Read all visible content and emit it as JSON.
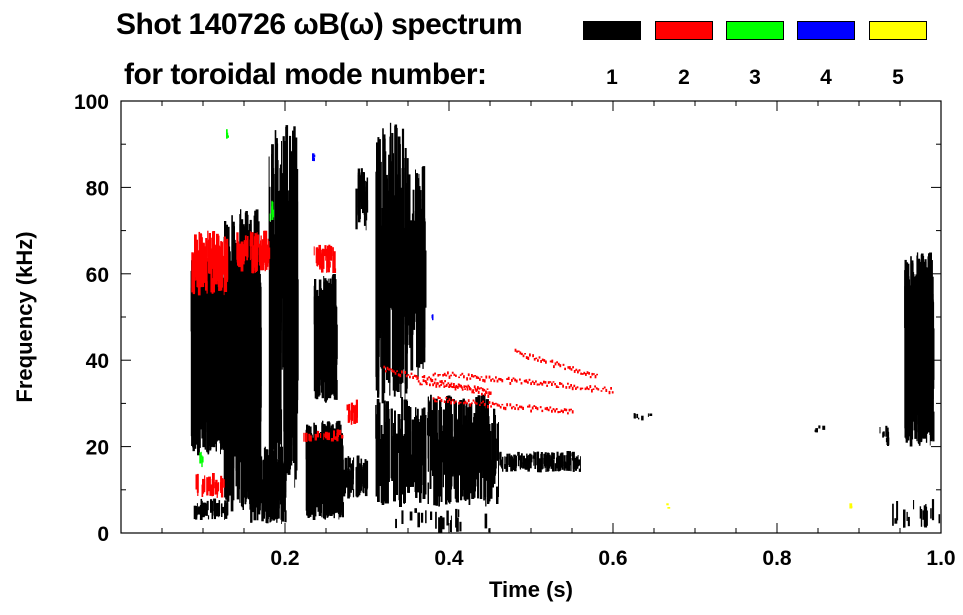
{
  "chart_data": {
    "type": "heatmap",
    "title_line1": "Shot 140726 ωB(ω) spectrum",
    "title_line2": "for toroidal mode number:",
    "xlabel": "Time (s)",
    "ylabel": "Frequency (kHz)",
    "xlim": [
      0,
      1.0
    ],
    "ylim": [
      0,
      100
    ],
    "xticks": [
      0.2,
      0.4,
      0.6,
      0.8,
      1.0
    ],
    "xtick_labels": [
      "0.2",
      "0.4",
      "0.6",
      "0.8",
      "1.0"
    ],
    "yticks": [
      0,
      20,
      40,
      60,
      80,
      100
    ],
    "ytick_labels": [
      "0",
      "20",
      "40",
      "60",
      "80",
      "100"
    ],
    "legend": [
      {
        "label": "1",
        "color": "#000000"
      },
      {
        "label": "2",
        "color": "#ff0000"
      },
      {
        "label": "3",
        "color": "#00ff00"
      },
      {
        "label": "4",
        "color": "#0000ff"
      },
      {
        "label": "5",
        "color": "#ffff00"
      }
    ],
    "regions": [
      {
        "mode": 1,
        "t": [
          0.085,
          0.125
        ],
        "f": [
          18,
          65
        ],
        "density": 0.9
      },
      {
        "mode": 1,
        "t": [
          0.088,
          0.13
        ],
        "f": [
          3,
          8
        ],
        "density": 0.7
      },
      {
        "mode": 1,
        "t": [
          0.125,
          0.17
        ],
        "f": [
          5,
          75
        ],
        "density": 0.25
      },
      {
        "mode": 1,
        "t": [
          0.155,
          0.2
        ],
        "f": [
          2,
          20
        ],
        "density": 0.6
      },
      {
        "mode": 1,
        "t": [
          0.18,
          0.215
        ],
        "f": [
          10,
          95
        ],
        "density": 0.15
      },
      {
        "mode": 1,
        "t": [
          0.225,
          0.27
        ],
        "f": [
          3,
          26
        ],
        "density": 0.9
      },
      {
        "mode": 1,
        "t": [
          0.235,
          0.262
        ],
        "f": [
          30,
          60
        ],
        "density": 0.6
      },
      {
        "mode": 1,
        "t": [
          0.27,
          0.3
        ],
        "f": [
          8,
          18
        ],
        "density": 0.6
      },
      {
        "mode": 1,
        "t": [
          0.285,
          0.3
        ],
        "f": [
          70,
          85
        ],
        "density": 0.3
      },
      {
        "mode": 1,
        "t": [
          0.31,
          0.46
        ],
        "f": [
          6,
          32
        ],
        "density": 0.9
      },
      {
        "mode": 1,
        "t": [
          0.46,
          0.56
        ],
        "f": [
          14,
          19
        ],
        "density": 0.8
      },
      {
        "mode": 1,
        "t": [
          0.31,
          0.35
        ],
        "f": [
          30,
          95
        ],
        "density": 0.15
      },
      {
        "mode": 1,
        "t": [
          0.35,
          0.37
        ],
        "f": [
          35,
          85
        ],
        "density": 0.2
      },
      {
        "mode": 1,
        "t": [
          0.33,
          0.45
        ],
        "f": [
          0,
          6
        ],
        "density": 0.1
      },
      {
        "mode": 1,
        "t": [
          0.62,
          0.66
        ],
        "f": [
          26,
          28
        ],
        "density": 0.3
      },
      {
        "mode": 1,
        "t": [
          0.84,
          0.86
        ],
        "f": [
          23,
          25
        ],
        "density": 0.3
      },
      {
        "mode": 1,
        "t": [
          0.925,
          0.935
        ],
        "f": [
          20,
          25
        ],
        "density": 0.6
      },
      {
        "mode": 1,
        "t": [
          0.955,
          0.99
        ],
        "f": [
          20,
          65
        ],
        "density": 0.6
      },
      {
        "mode": 1,
        "t": [
          0.94,
          1.0
        ],
        "f": [
          1,
          8
        ],
        "density": 0.15
      },
      {
        "mode": 2,
        "t": [
          0.085,
          0.13
        ],
        "f": [
          55,
          70
        ],
        "density": 0.4
      },
      {
        "mode": 2,
        "t": [
          0.09,
          0.125
        ],
        "f": [
          8,
          14
        ],
        "density": 0.4
      },
      {
        "mode": 2,
        "t": [
          0.14,
          0.18
        ],
        "f": [
          60,
          70
        ],
        "density": 0.5
      },
      {
        "mode": 2,
        "t": [
          0.235,
          0.26
        ],
        "f": [
          60,
          67
        ],
        "density": 0.6
      },
      {
        "mode": 2,
        "t": [
          0.22,
          0.27
        ],
        "f": [
          21,
          24
        ],
        "density": 0.5
      },
      {
        "mode": 2,
        "t": [
          0.27,
          0.29
        ],
        "f": [
          25,
          31
        ],
        "density": 0.4
      },
      {
        "mode": 3,
        "t": [
          0.128,
          0.132
        ],
        "f": [
          91,
          94
        ],
        "density": 0.8
      },
      {
        "mode": 3,
        "t": [
          0.18,
          0.185
        ],
        "f": [
          72,
          78
        ],
        "density": 0.8
      },
      {
        "mode": 3,
        "t": [
          0.095,
          0.1
        ],
        "f": [
          15,
          19
        ],
        "density": 0.8
      },
      {
        "mode": 4,
        "t": [
          0.232,
          0.236
        ],
        "f": [
          86,
          89
        ],
        "density": 0.8
      },
      {
        "mode": 4,
        "t": [
          0.378,
          0.382
        ],
        "f": [
          49,
          51
        ],
        "density": 0.8
      },
      {
        "mode": 5,
        "t": [
          0.664,
          0.668
        ],
        "f": [
          5,
          7
        ],
        "density": 0.9
      },
      {
        "mode": 5,
        "t": [
          0.888,
          0.892
        ],
        "f": [
          5,
          7
        ],
        "density": 0.9
      }
    ],
    "ridges": [
      {
        "mode": 2,
        "t": [
          0.32,
          0.45
        ],
        "f": [
          38,
          32
        ]
      },
      {
        "mode": 2,
        "t": [
          0.38,
          0.6
        ],
        "f": [
          37,
          33
        ]
      },
      {
        "mode": 2,
        "t": [
          0.48,
          0.58
        ],
        "f": [
          42,
          36
        ]
      },
      {
        "mode": 2,
        "t": [
          0.38,
          0.55
        ],
        "f": [
          31,
          28
        ]
      },
      {
        "mode": 2,
        "t": [
          0.36,
          0.45
        ],
        "f": [
          35,
          33
        ]
      }
    ]
  }
}
